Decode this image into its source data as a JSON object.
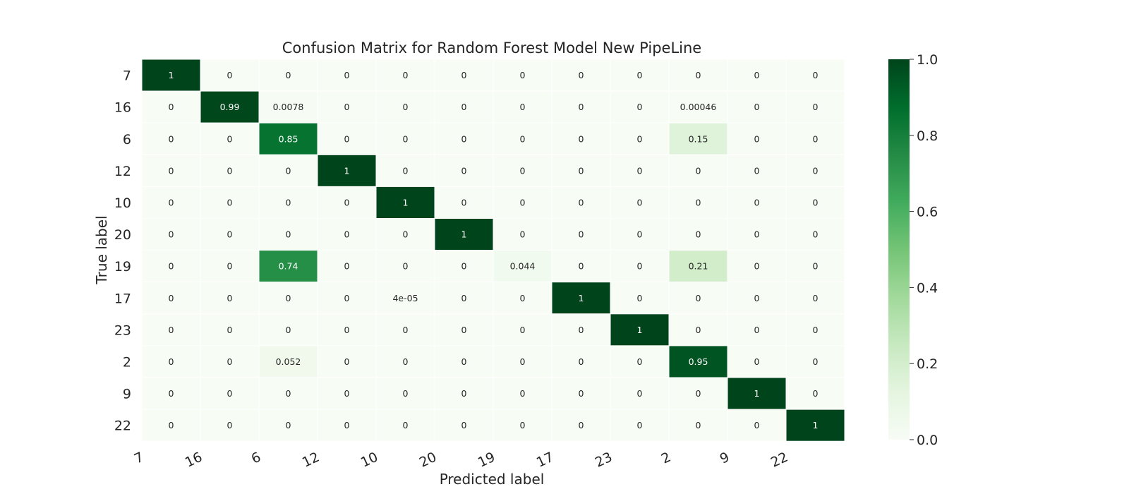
{
  "chart_data": {
    "type": "heatmap",
    "title": "Confusion Matrix for Random Forest Model New PipeLine",
    "xlabel": "Predicted label",
    "ylabel": "True label",
    "x_categories": [
      "7",
      "16",
      "6",
      "12",
      "10",
      "20",
      "19",
      "17",
      "23",
      "2",
      "9",
      "22"
    ],
    "y_categories": [
      "7",
      "16",
      "6",
      "12",
      "10",
      "20",
      "19",
      "17",
      "23",
      "2",
      "9",
      "22"
    ],
    "values": [
      [
        1,
        0,
        0,
        0,
        0,
        0,
        0,
        0,
        0,
        0,
        0,
        0
      ],
      [
        0,
        0.99,
        0.0078,
        0,
        0,
        0,
        0,
        0,
        0,
        0.00046,
        0,
        0
      ],
      [
        0,
        0,
        0.85,
        0,
        0,
        0,
        0,
        0,
        0,
        0.15,
        0,
        0
      ],
      [
        0,
        0,
        0,
        1,
        0,
        0,
        0,
        0,
        0,
        0,
        0,
        0
      ],
      [
        0,
        0,
        0,
        0,
        1,
        0,
        0,
        0,
        0,
        0,
        0,
        0
      ],
      [
        0,
        0,
        0,
        0,
        0,
        1,
        0,
        0,
        0,
        0,
        0,
        0
      ],
      [
        0,
        0,
        0.74,
        0,
        0,
        0,
        0.044,
        0,
        0,
        0.21,
        0,
        0
      ],
      [
        0,
        0,
        0,
        0,
        4e-05,
        0,
        0,
        1,
        0,
        0,
        0,
        0
      ],
      [
        0,
        0,
        0,
        0,
        0,
        0,
        0,
        0,
        1,
        0,
        0,
        0
      ],
      [
        0,
        0,
        0.052,
        0,
        0,
        0,
        0,
        0,
        0,
        0.95,
        0,
        0
      ],
      [
        0,
        0,
        0,
        0,
        0,
        0,
        0,
        0,
        0,
        0,
        1,
        0
      ],
      [
        0,
        0,
        0,
        0,
        0,
        0,
        0,
        0,
        0,
        0,
        0,
        1
      ]
    ],
    "annotations": [
      [
        "1",
        "0",
        "0",
        "0",
        "0",
        "0",
        "0",
        "0",
        "0",
        "0",
        "0",
        "0"
      ],
      [
        "0",
        "0.99",
        "0.0078",
        "0",
        "0",
        "0",
        "0",
        "0",
        "0",
        "0.00046",
        "0",
        "0"
      ],
      [
        "0",
        "0",
        "0.85",
        "0",
        "0",
        "0",
        "0",
        "0",
        "0",
        "0.15",
        "0",
        "0"
      ],
      [
        "0",
        "0",
        "0",
        "1",
        "0",
        "0",
        "0",
        "0",
        "0",
        "0",
        "0",
        "0"
      ],
      [
        "0",
        "0",
        "0",
        "0",
        "1",
        "0",
        "0",
        "0",
        "0",
        "0",
        "0",
        "0"
      ],
      [
        "0",
        "0",
        "0",
        "0",
        "0",
        "1",
        "0",
        "0",
        "0",
        "0",
        "0",
        "0"
      ],
      [
        "0",
        "0",
        "0.74",
        "0",
        "0",
        "0",
        "0.044",
        "0",
        "0",
        "0.21",
        "0",
        "0"
      ],
      [
        "0",
        "0",
        "0",
        "0",
        "4e-05",
        "0",
        "0",
        "1",
        "0",
        "0",
        "0",
        "0"
      ],
      [
        "0",
        "0",
        "0",
        "0",
        "0",
        "0",
        "0",
        "0",
        "1",
        "0",
        "0",
        "0"
      ],
      [
        "0",
        "0",
        "0.052",
        "0",
        "0",
        "0",
        "0",
        "0",
        "0",
        "0.95",
        "0",
        "0"
      ],
      [
        "0",
        "0",
        "0",
        "0",
        "0",
        "0",
        "0",
        "0",
        "0",
        "0",
        "1",
        "0"
      ],
      [
        "0",
        "0",
        "0",
        "0",
        "0",
        "0",
        "0",
        "0",
        "0",
        "0",
        "0",
        "1"
      ]
    ],
    "colormap": "Greens",
    "colorbar": {
      "range": [
        0.0,
        1.0
      ],
      "ticks": [
        "0.0",
        "0.2",
        "0.4",
        "0.6",
        "0.8",
        "1.0"
      ]
    },
    "grid": true,
    "colors": {
      "low": "#f7fcf5",
      "high": "#00441b",
      "cell_border": "#ffffff",
      "text_dark": "#262626",
      "text_light": "#ffffff"
    }
  }
}
